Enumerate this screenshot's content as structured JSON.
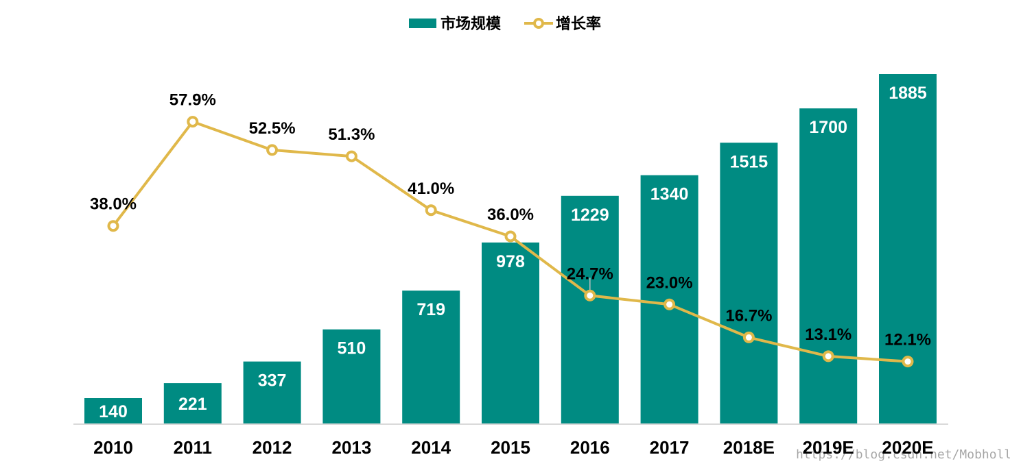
{
  "chart_data": {
    "type": "bar",
    "title": "",
    "xlabel": "",
    "ylabel": "",
    "categories": [
      "2010",
      "2011",
      "2012",
      "2013",
      "2014",
      "2015",
      "2016",
      "2017",
      "2018E",
      "2019E",
      "2020E"
    ],
    "series": [
      {
        "name": "市场规模",
        "type": "bar",
        "color": "#008b82",
        "values": [
          140,
          221,
          337,
          510,
          719,
          978,
          1229,
          1340,
          1515,
          1700,
          1885
        ],
        "labels": [
          "140",
          "221",
          "337",
          "510",
          "719",
          "978",
          "1229",
          "1340",
          "1515",
          "1700",
          "1885"
        ]
      },
      {
        "name": "增长率",
        "type": "line",
        "color": "#e0b84a",
        "values": [
          38.0,
          57.9,
          52.5,
          51.3,
          41.0,
          36.0,
          24.7,
          23.0,
          16.7,
          13.1,
          12.1
        ],
        "labels": [
          "38.0%",
          "57.9%",
          "52.5%",
          "51.3%",
          "41.0%",
          "36.0%",
          "24.7%",
          "23.0%",
          "16.7%",
          "13.1%",
          "12.1%"
        ]
      }
    ],
    "ylim_bar": [
      0,
      1885
    ],
    "ylim_line": [
      0,
      80
    ],
    "grid": false,
    "legend_position": "top-center",
    "axis_color": "#d9d9d9"
  },
  "watermark": "https://blog.csdn.net/Mobholly"
}
